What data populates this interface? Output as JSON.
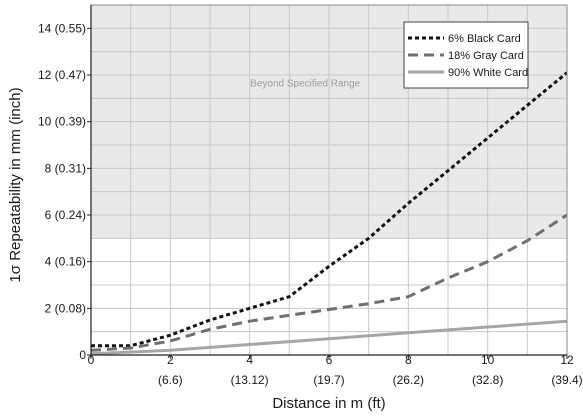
{
  "chart_data": {
    "type": "line",
    "title": "",
    "xlabel": "Distance in m (ft)",
    "ylabel": "1σ Repeatability in mm (inch)",
    "xlim": [
      0,
      12
    ],
    "ylim": [
      0,
      15
    ],
    "x_ticks": [
      {
        "value": 0,
        "label": "0",
        "sub": ""
      },
      {
        "value": 2,
        "label": "2",
        "sub": "(6.6)"
      },
      {
        "value": 4,
        "label": "4",
        "sub": "(13.12)"
      },
      {
        "value": 6,
        "label": "6",
        "sub": "(19.7)"
      },
      {
        "value": 8,
        "label": "8",
        "sub": "(26.2)"
      },
      {
        "value": 10,
        "label": "10",
        "sub": "(32.8)"
      },
      {
        "value": 12,
        "label": "12",
        "sub": "(39.4)"
      }
    ],
    "y_ticks": [
      {
        "value": 0,
        "label": "0"
      },
      {
        "value": 2,
        "label": "2 (0.08)"
      },
      {
        "value": 4,
        "label": "4 (0.16)"
      },
      {
        "value": 6,
        "label": "6 (0.24)"
      },
      {
        "value": 8,
        "label": "8 (0.31)"
      },
      {
        "value": 10,
        "label": "10 (0.39)"
      },
      {
        "value": 12,
        "label": "12 (0.47)"
      },
      {
        "value": 14,
        "label": "14 (0.55)"
      }
    ],
    "grid": true,
    "x_minor_step": 1,
    "y_minor_step": 1,
    "shaded_region": {
      "y_from": 5,
      "y_to": 15,
      "label": "Beyond Specified Range",
      "color": "#e9e9e9"
    },
    "legend": {
      "position": "top-right"
    },
    "series": [
      {
        "name": "6% Black Card",
        "color": "#111111",
        "style": "dotted",
        "x": [
          0,
          1,
          2,
          3,
          4,
          5,
          6,
          7,
          8,
          9,
          10,
          11,
          12
        ],
        "y": [
          0.4,
          0.4,
          0.85,
          1.5,
          2.0,
          2.5,
          3.8,
          5.0,
          6.5,
          7.9,
          9.3,
          10.7,
          12.1
        ]
      },
      {
        "name": "18% Gray Card",
        "color": "#6f6f6f",
        "style": "dashed",
        "x": [
          0,
          1,
          2,
          3,
          4,
          5,
          6,
          7,
          8,
          9,
          10,
          11,
          12
        ],
        "y": [
          0.2,
          0.3,
          0.6,
          1.1,
          1.45,
          1.7,
          1.95,
          2.2,
          2.5,
          3.3,
          4.0,
          4.9,
          6.0
        ]
      },
      {
        "name": "90% White Card",
        "color": "#a6a6a6",
        "style": "solid",
        "x": [
          0,
          2,
          4,
          6,
          8,
          10,
          12
        ],
        "y": [
          0.05,
          0.2,
          0.45,
          0.7,
          0.95,
          1.2,
          1.45
        ]
      }
    ]
  }
}
